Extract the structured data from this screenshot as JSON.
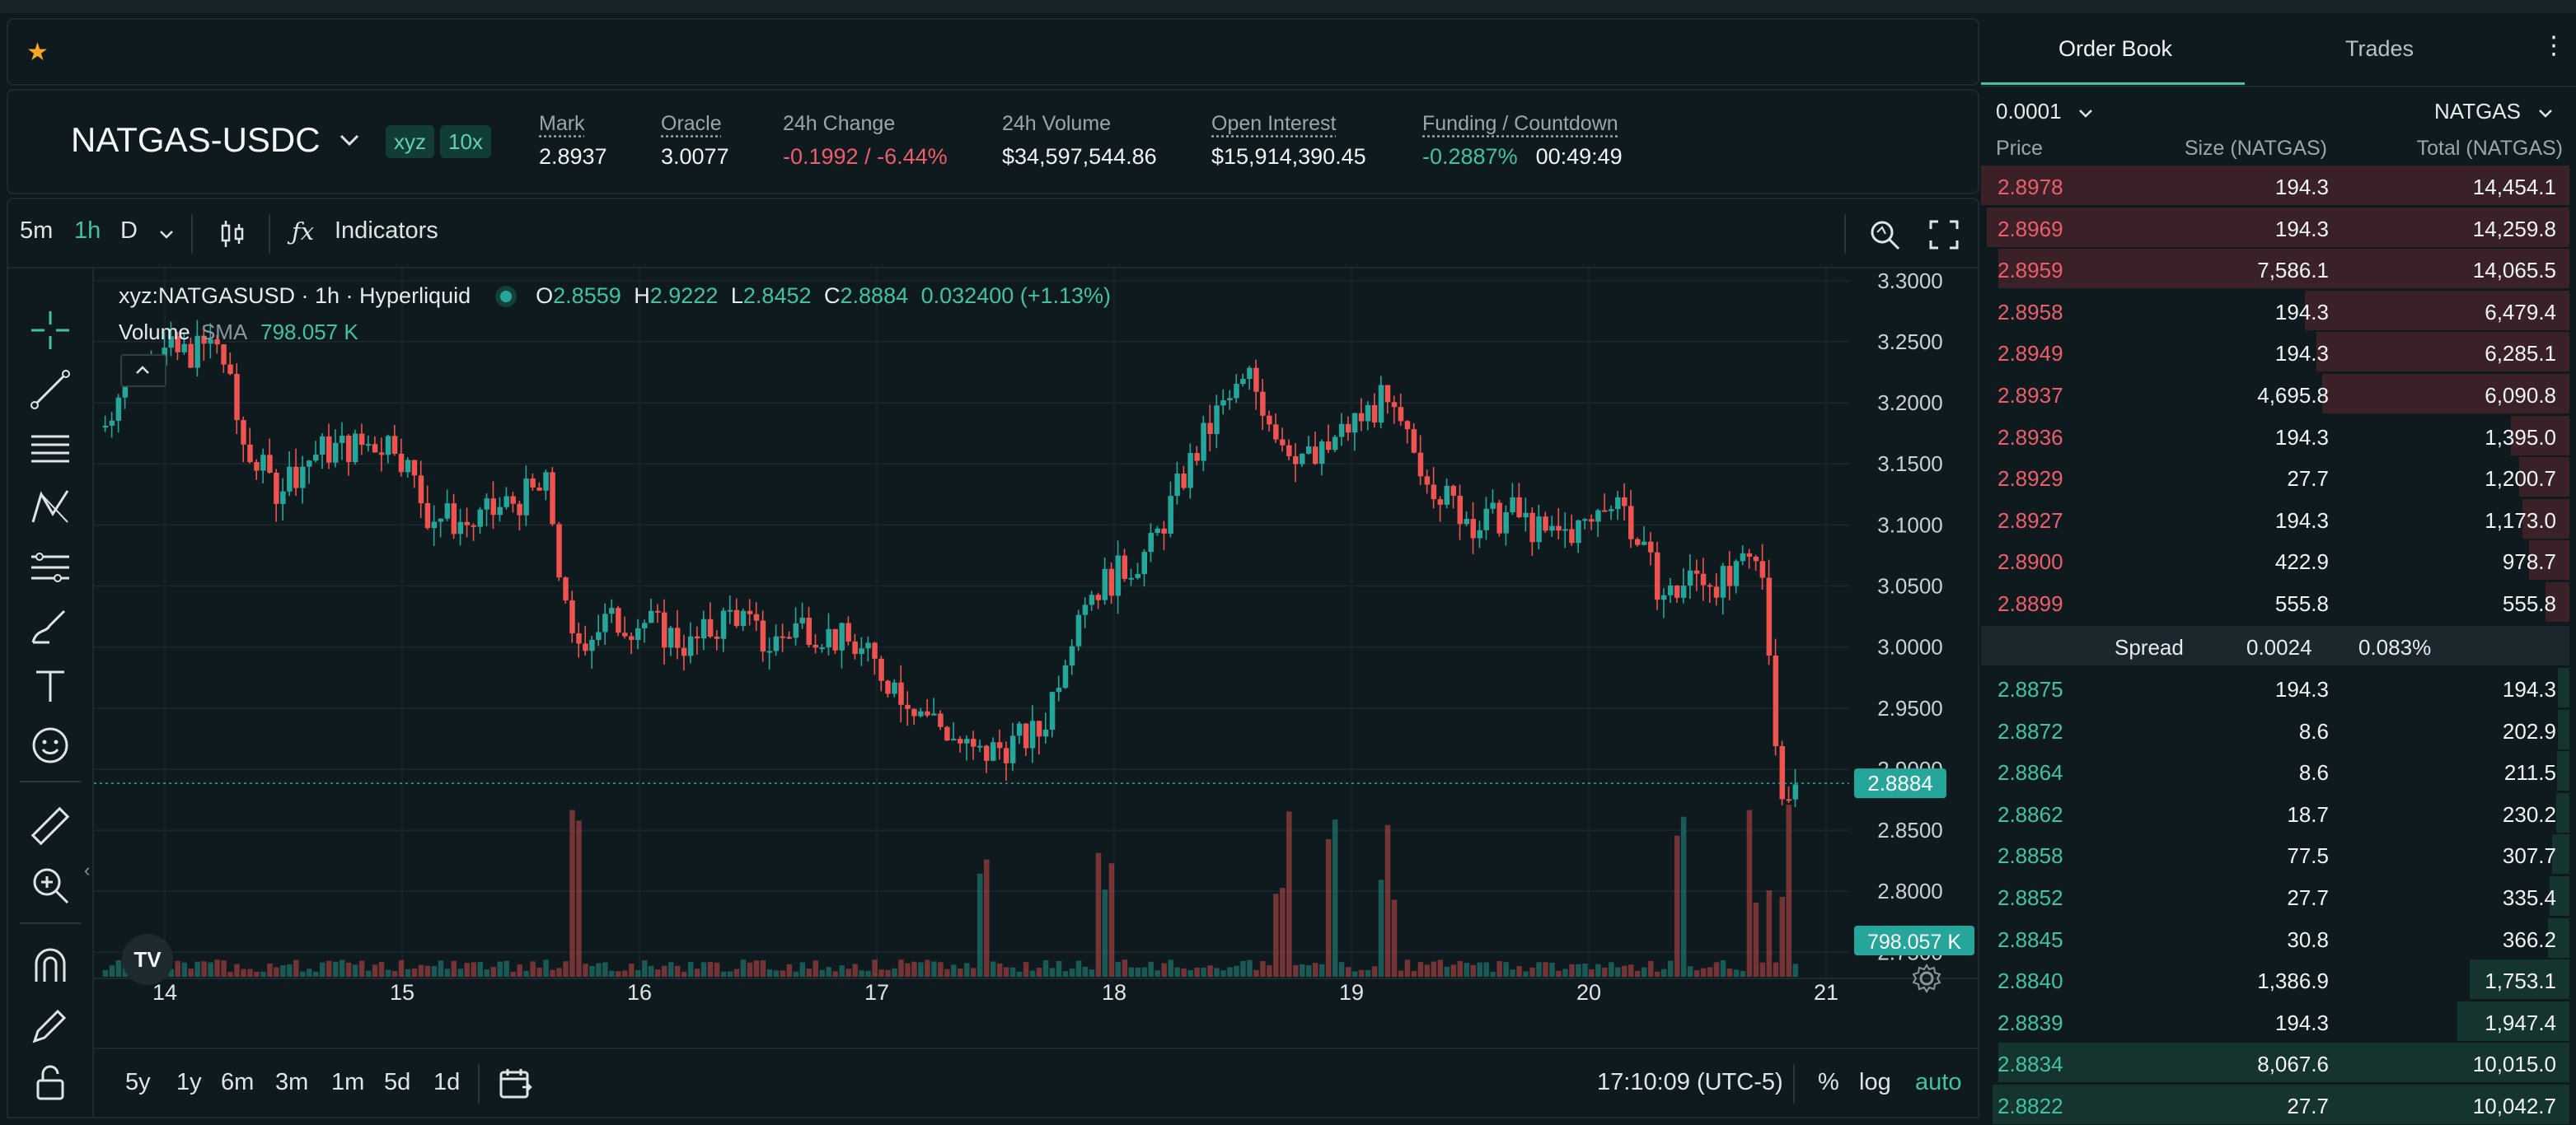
{
  "favorites": {
    "star_icon": "star-icon"
  },
  "ticker": {
    "symbol": "NATGAS-USDC",
    "tags": [
      "xyz",
      "10x"
    ],
    "stats": [
      {
        "label": "Mark",
        "value": "2.8937",
        "underline": true
      },
      {
        "label": "Oracle",
        "value": "3.0077",
        "underline": true
      },
      {
        "label": "24h Change",
        "value": "-0.1992 / -6.44%",
        "underline": false
      },
      {
        "label": "24h Volume",
        "value": "$34,597,544.86",
        "underline": false
      },
      {
        "label": "Open Interest",
        "value": "$15,914,390.45",
        "underline": true
      }
    ],
    "funding": {
      "label": "Funding / Countdown",
      "rate": "-0.2887%",
      "countdown": "00:49:49"
    }
  },
  "chart_toolbar": {
    "intervals": [
      "5m",
      "1h",
      "D"
    ],
    "active_interval": "1h",
    "indicators_label": "Indicators"
  },
  "chart_legend": {
    "title": "xyz:NATGASUSD · 1h · Hyperliquid",
    "o_label": "O",
    "o": "2.8559",
    "h_label": "H",
    "h": "2.9222",
    "l_label": "L",
    "l": "2.8452",
    "c_label": "C",
    "c": "2.8884",
    "change": "0.032400 (+1.13%)",
    "volume_label": "Volume",
    "sma_label": "SMA",
    "volume_value": "798.057 K"
  },
  "chart_data": {
    "type": "candlestick",
    "x_ticks": [
      "14",
      "15",
      "16",
      "17",
      "18",
      "19",
      "20",
      "21"
    ],
    "y_ticks": [
      "3.3000",
      "3.2500",
      "3.2000",
      "3.1500",
      "3.1000",
      "3.0500",
      "3.0000",
      "2.9500",
      "2.9000",
      "2.8500",
      "2.8000",
      "2.7500"
    ],
    "y_range": [
      2.73,
      3.31
    ],
    "last_price": "2.8884",
    "last_volume": "798.057 K",
    "up_color": "#26a69a",
    "down_color": "#ef5350"
  },
  "bottom_bar": {
    "ranges": [
      "5y",
      "1y",
      "6m",
      "3m",
      "1m",
      "5d",
      "1d"
    ],
    "clock": "17:10:09 (UTC-5)",
    "percent": "%",
    "log": "log",
    "auto": "auto"
  },
  "orderbook": {
    "tabs": [
      "Order Book",
      "Trades"
    ],
    "tick_size": "0.0001",
    "unit": "NATGAS",
    "headers": [
      "Price",
      "Size (NATGAS)",
      "Total (NATGAS)"
    ],
    "asks": [
      {
        "price": "2.8978",
        "size": "194.3",
        "total": "14,454.1",
        "depth": 1.0
      },
      {
        "price": "2.8969",
        "size": "194.3",
        "total": "14,259.8",
        "depth": 0.99
      },
      {
        "price": "2.8959",
        "size": "7,586.1",
        "total": "14,065.5",
        "depth": 0.97
      },
      {
        "price": "2.8958",
        "size": "194.3",
        "total": "6,479.4",
        "depth": 0.45
      },
      {
        "price": "2.8949",
        "size": "194.3",
        "total": "6,285.1",
        "depth": 0.43
      },
      {
        "price": "2.8937",
        "size": "4,695.8",
        "total": "6,090.8",
        "depth": 0.42
      },
      {
        "price": "2.8936",
        "size": "194.3",
        "total": "1,395.0",
        "depth": 0.1
      },
      {
        "price": "2.8929",
        "size": "27.7",
        "total": "1,200.7",
        "depth": 0.085
      },
      {
        "price": "2.8927",
        "size": "194.3",
        "total": "1,173.0",
        "depth": 0.08
      },
      {
        "price": "2.8900",
        "size": "422.9",
        "total": "978.7",
        "depth": 0.068
      },
      {
        "price": "2.8899",
        "size": "555.8",
        "total": "555.8",
        "depth": 0.04
      }
    ],
    "spread": {
      "label": "Spread",
      "value": "0.0024",
      "pct": "0.083%"
    },
    "bids": [
      {
        "price": "2.8875",
        "size": "194.3",
        "total": "194.3",
        "depth": 0.02
      },
      {
        "price": "2.8872",
        "size": "8.6",
        "total": "202.9",
        "depth": 0.02
      },
      {
        "price": "2.8864",
        "size": "8.6",
        "total": "211.5",
        "depth": 0.021
      },
      {
        "price": "2.8862",
        "size": "18.7",
        "total": "230.2",
        "depth": 0.023
      },
      {
        "price": "2.8858",
        "size": "77.5",
        "total": "307.7",
        "depth": 0.03
      },
      {
        "price": "2.8852",
        "size": "27.7",
        "total": "335.4",
        "depth": 0.033
      },
      {
        "price": "2.8845",
        "size": "30.8",
        "total": "366.2",
        "depth": 0.036
      },
      {
        "price": "2.8840",
        "size": "1,386.9",
        "total": "1,753.1",
        "depth": 0.17
      },
      {
        "price": "2.8839",
        "size": "194.3",
        "total": "1,947.4",
        "depth": 0.19
      },
      {
        "price": "2.8834",
        "size": "8,067.6",
        "total": "10,015.0",
        "depth": 0.97
      },
      {
        "price": "2.8822",
        "size": "27.7",
        "total": "10,042.7",
        "depth": 0.98
      }
    ]
  }
}
